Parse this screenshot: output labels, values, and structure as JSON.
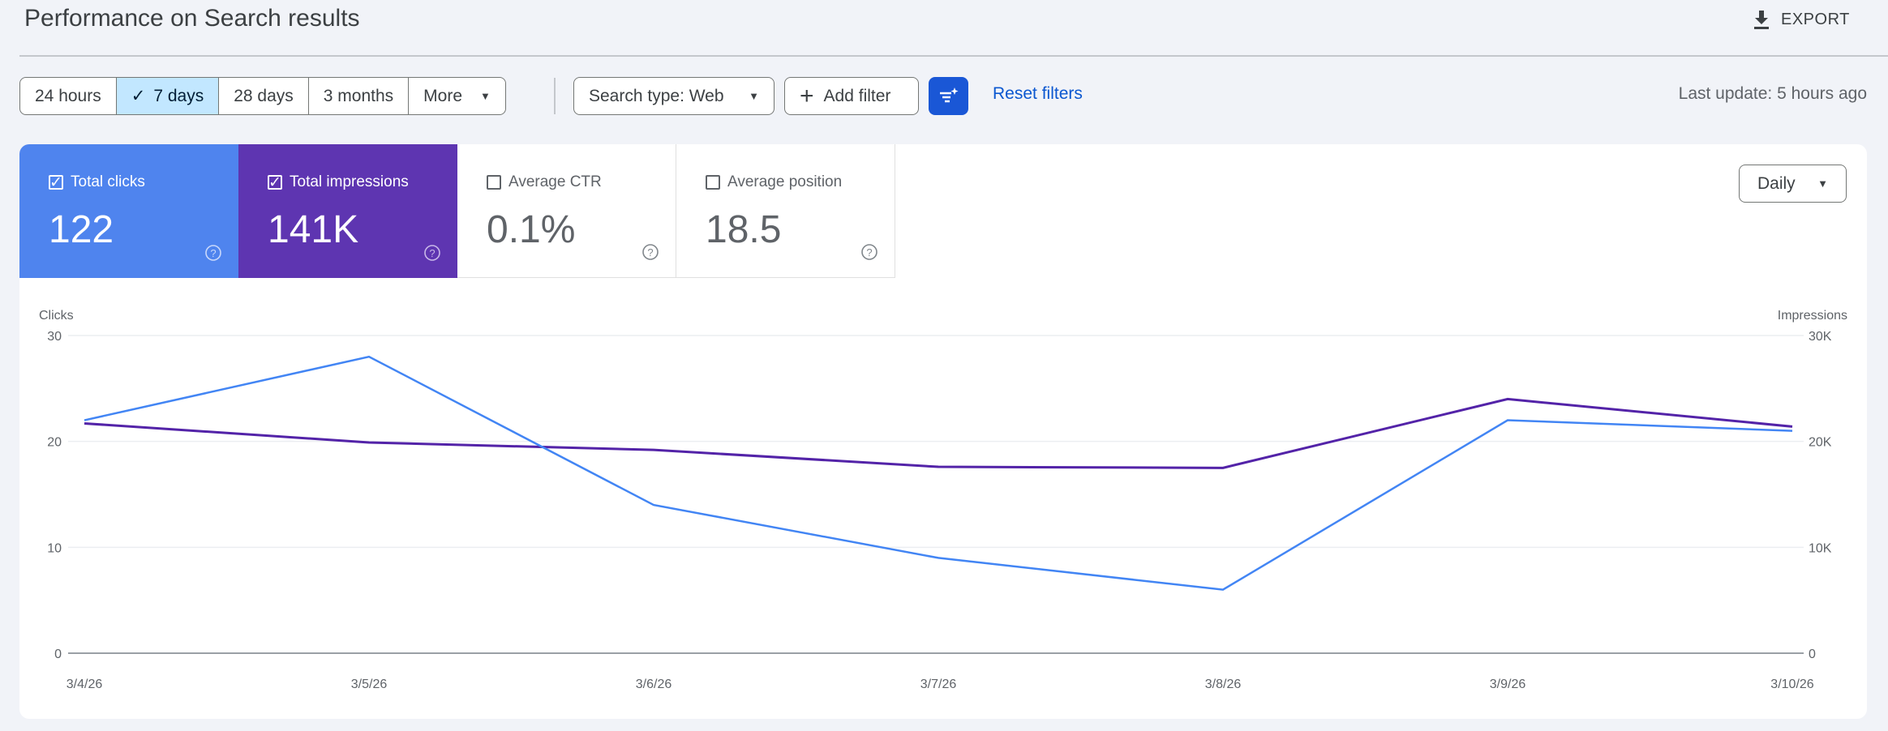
{
  "header": {
    "title": "Performance on Search results",
    "export_label": "EXPORT"
  },
  "toolbar": {
    "ranges": [
      {
        "label": "24 hours",
        "selected": false
      },
      {
        "label": "7 days",
        "selected": true
      },
      {
        "label": "28 days",
        "selected": false
      },
      {
        "label": "3 months",
        "selected": false
      },
      {
        "label": "More",
        "selected": false
      }
    ],
    "search_type": "Search type: Web",
    "add_filter": "Add filter",
    "reset_filters": "Reset filters",
    "last_update": "Last update: 5 hours ago"
  },
  "metrics": [
    {
      "label": "Total clicks",
      "value": "122",
      "checked": true,
      "color": "#4f84ee"
    },
    {
      "label": "Total impressions",
      "value": "141K",
      "checked": true,
      "color": "#5e35b1"
    },
    {
      "label": "Average CTR",
      "value": "0.1%",
      "checked": false
    },
    {
      "label": "Average position",
      "value": "18.5",
      "checked": false
    }
  ],
  "granularity": "Daily",
  "chart_data": {
    "type": "line",
    "categories": [
      "3/4/26",
      "3/5/26",
      "3/6/26",
      "3/7/26",
      "3/8/26",
      "3/9/26",
      "3/10/26"
    ],
    "ylabel": "Clicks",
    "y2label": "Impressions",
    "ylim": [
      0,
      30
    ],
    "y2lim": [
      0,
      30000
    ],
    "yticks": [
      "0",
      "10",
      "20",
      "30"
    ],
    "y2ticks": [
      "0",
      "10K",
      "20K",
      "30K"
    ],
    "grid": true,
    "series": [
      {
        "name": "Clicks",
        "axis": "left",
        "color": "#4285f4",
        "values": [
          22,
          28,
          14,
          9,
          6,
          22,
          21
        ]
      },
      {
        "name": "Impressions",
        "axis": "right",
        "color": "#5323a8",
        "values": [
          21700,
          19900,
          19200,
          17600,
          17500,
          24000,
          21400
        ]
      }
    ]
  }
}
